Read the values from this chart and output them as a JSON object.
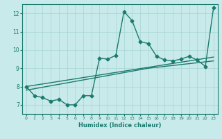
{
  "xlabel": "Humidex (Indice chaleur)",
  "line_color": "#1a7a6e",
  "bg_color": "#c8eaea",
  "grid_color": "#a8d4d4",
  "x_data": [
    0,
    1,
    2,
    3,
    4,
    5,
    6,
    7,
    8,
    9,
    10,
    11,
    12,
    13,
    14,
    15,
    16,
    17,
    18,
    19,
    20,
    21,
    22,
    23
  ],
  "y_main": [
    8.0,
    7.5,
    7.4,
    7.2,
    7.3,
    7.0,
    7.0,
    7.5,
    7.5,
    9.55,
    9.5,
    9.7,
    12.1,
    11.6,
    10.45,
    10.35,
    9.65,
    9.45,
    9.4,
    9.5,
    9.65,
    9.45,
    9.1,
    12.3
  ],
  "y_reg1": [
    8.0,
    8.07,
    8.14,
    8.21,
    8.28,
    8.35,
    8.42,
    8.49,
    8.56,
    8.63,
    8.7,
    8.77,
    8.84,
    8.91,
    8.98,
    9.05,
    9.12,
    9.19,
    9.26,
    9.33,
    9.4,
    9.47,
    9.54,
    9.61
  ],
  "y_reg2": [
    7.8,
    7.88,
    7.96,
    8.04,
    8.12,
    8.2,
    8.28,
    8.36,
    8.44,
    8.52,
    8.6,
    8.68,
    8.76,
    8.84,
    8.92,
    9.0,
    9.05,
    9.1,
    9.15,
    9.2,
    9.25,
    9.3,
    9.35,
    9.4
  ],
  "xlim": [
    -0.5,
    23.5
  ],
  "ylim": [
    6.5,
    12.5
  ],
  "yticks": [
    7,
    8,
    9,
    10,
    11,
    12
  ],
  "xticks": [
    0,
    1,
    2,
    3,
    4,
    5,
    6,
    7,
    8,
    9,
    10,
    11,
    12,
    13,
    14,
    15,
    16,
    17,
    18,
    19,
    20,
    21,
    22,
    23
  ],
  "marker": "D",
  "markersize": 2.5,
  "linewidth": 1.0
}
